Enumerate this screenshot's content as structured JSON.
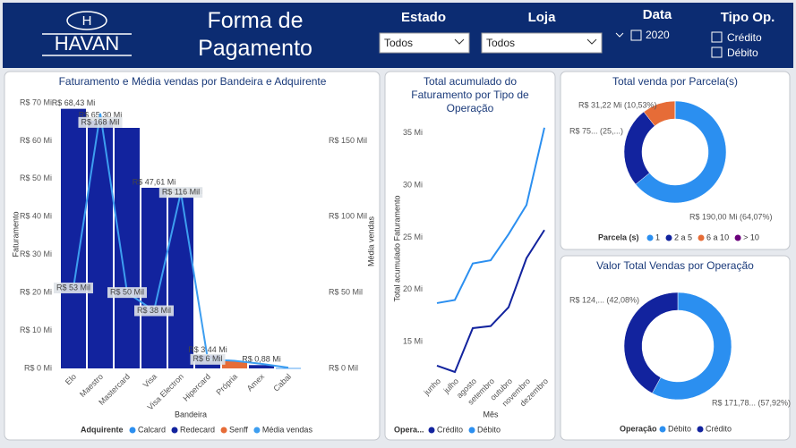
{
  "header": {
    "logo_mark": "H",
    "logo": "HAVAN",
    "title": "Forma de Pagamento"
  },
  "filters": {
    "estado": {
      "label": "Estado",
      "value": "Todos"
    },
    "loja": {
      "label": "Loja",
      "value": "Todos"
    },
    "data": {
      "label": "Data",
      "options": [
        "2020"
      ]
    },
    "tipo_op": {
      "label": "Tipo Op.",
      "options": [
        "Crédito",
        "Débito"
      ]
    }
  },
  "chart_data": [
    {
      "type": "combo",
      "title": "Faturamento e Média vendas por Bandeira e Adquirente",
      "x_label": "Bandeira",
      "y_label": "Faturamento",
      "y2_label": "Média vendas",
      "legend": "bottom",
      "legend_title": "Adquirente",
      "grid": false,
      "categories": [
        "Elo",
        "Maestro",
        "Mastercard",
        "Visa",
        "Visa Electron",
        "Hipercard",
        "Própria",
        "Amex",
        "Cabal"
      ],
      "ylim": [
        0,
        70
      ],
      "yticks": [
        {
          "value": 0,
          "label": "R$ 0 Mi"
        },
        {
          "value": 10,
          "label": "R$ 10 Mi"
        },
        {
          "value": 20,
          "label": "R$ 20 Mi"
        },
        {
          "value": 30,
          "label": "R$ 30 Mi"
        },
        {
          "value": 40,
          "label": "R$ 40 Mi"
        },
        {
          "value": 50,
          "label": "R$ 50 Mi"
        },
        {
          "value": 60,
          "label": "R$ 60 Mi"
        },
        {
          "value": 70,
          "label": "R$ 70 Mi"
        }
      ],
      "y2lim": [
        0,
        175
      ],
      "y2ticks": [
        {
          "value": 0,
          "label": "R$ 0 Mil"
        },
        {
          "value": 50,
          "label": "R$ 50 Mil"
        },
        {
          "value": 100,
          "label": "R$ 100 Mil"
        },
        {
          "value": 150,
          "label": "R$ 150 Mil"
        }
      ],
      "series": [
        {
          "name": "Calcard",
          "type": "bar",
          "color": "#2b8ff0",
          "values": [
            null,
            null,
            null,
            null,
            null,
            null,
            null,
            null,
            0.1
          ]
        },
        {
          "name": "Redecard",
          "type": "bar",
          "color": "#12239e",
          "values": [
            68.43,
            65.3,
            63.4,
            47.61,
            45.12,
            3.44,
            null,
            0.88,
            null
          ],
          "value_labels": [
            "R$ 68,43 Mi",
            "R$ 65,30 Mi",
            null,
            "R$ 47,61 Mi",
            "R$ 45,12 Mi",
            "R$ 3,44 Mi",
            null,
            "R$ 0,88 Mi",
            null
          ]
        },
        {
          "name": "Senff",
          "type": "bar",
          "color": "#e66c37",
          "values": [
            null,
            null,
            null,
            null,
            null,
            null,
            1.9,
            null,
            null
          ]
        },
        {
          "name": "Média vendas",
          "type": "line",
          "axis": "y2",
          "color": "#3d9ef0",
          "values": [
            53,
            168,
            50,
            38,
            116,
            6,
            5,
            3,
            0.5
          ],
          "value_labels": [
            "R$ 53 Mil",
            "R$ 168 Mil",
            "R$ 50 Mil",
            "R$ 38 Mil",
            "R$ 116 Mil",
            "R$ 6 Mil",
            null,
            null,
            null
          ]
        }
      ]
    },
    {
      "type": "line",
      "title": "Total acumulado do Faturamento por Tipo de Operação",
      "x_label": "Mês",
      "y_label": "Total acumulado Faturamento",
      "legend": "bottom",
      "legend_title": "Opera...",
      "grid": false,
      "categories": [
        "junho",
        "julho",
        "agosto",
        "setembro",
        "outubro",
        "novembro",
        "dezembro"
      ],
      "ylim": [
        11.5,
        36
      ],
      "yticks": [
        {
          "value": 15,
          "label": "15 Mi"
        },
        {
          "value": 20,
          "label": "20 Mi"
        },
        {
          "value": 25,
          "label": "25 Mi"
        },
        {
          "value": 30,
          "label": "30 Mi"
        },
        {
          "value": 35,
          "label": "35 Mi"
        }
      ],
      "series": [
        {
          "name": "Crédito",
          "color": "#12239e",
          "values": [
            12.7,
            12.1,
            16.3,
            16.5,
            18.3,
            23.0,
            25.7
          ]
        },
        {
          "name": "Débito",
          "color": "#2b8ff0",
          "values": [
            18.7,
            19.0,
            22.5,
            22.8,
            25.3,
            28.1,
            35.5
          ]
        }
      ]
    },
    {
      "type": "donut",
      "title": "Total venda por Parcela(s)",
      "legend": "bottom",
      "legend_title": "Parcela (s)",
      "categories": [
        "1",
        "2 a 5",
        "6 a 10",
        "> 10"
      ],
      "colors": [
        "#2b8ff0",
        "#12239e",
        "#e66c37",
        "#6b007b"
      ],
      "values": [
        190.0,
        75.3,
        31.22,
        0.03
      ],
      "value_labels": [
        "R$ 190,00 Mi (64,07%)",
        "R$ 75... (25,...)",
        "R$ 31,22 Mi (10,53%)",
        null
      ]
    },
    {
      "type": "donut",
      "title": "Valor Total Vendas por Operação",
      "legend": "bottom",
      "legend_title": "Operação",
      "categories": [
        "Débito",
        "Crédito"
      ],
      "colors": [
        "#2b8ff0",
        "#12239e"
      ],
      "values": [
        171.78,
        124.8
      ],
      "value_labels": [
        "R$ 171,78... (57,92%)",
        "R$ 124,... (42,08%)"
      ]
    }
  ]
}
